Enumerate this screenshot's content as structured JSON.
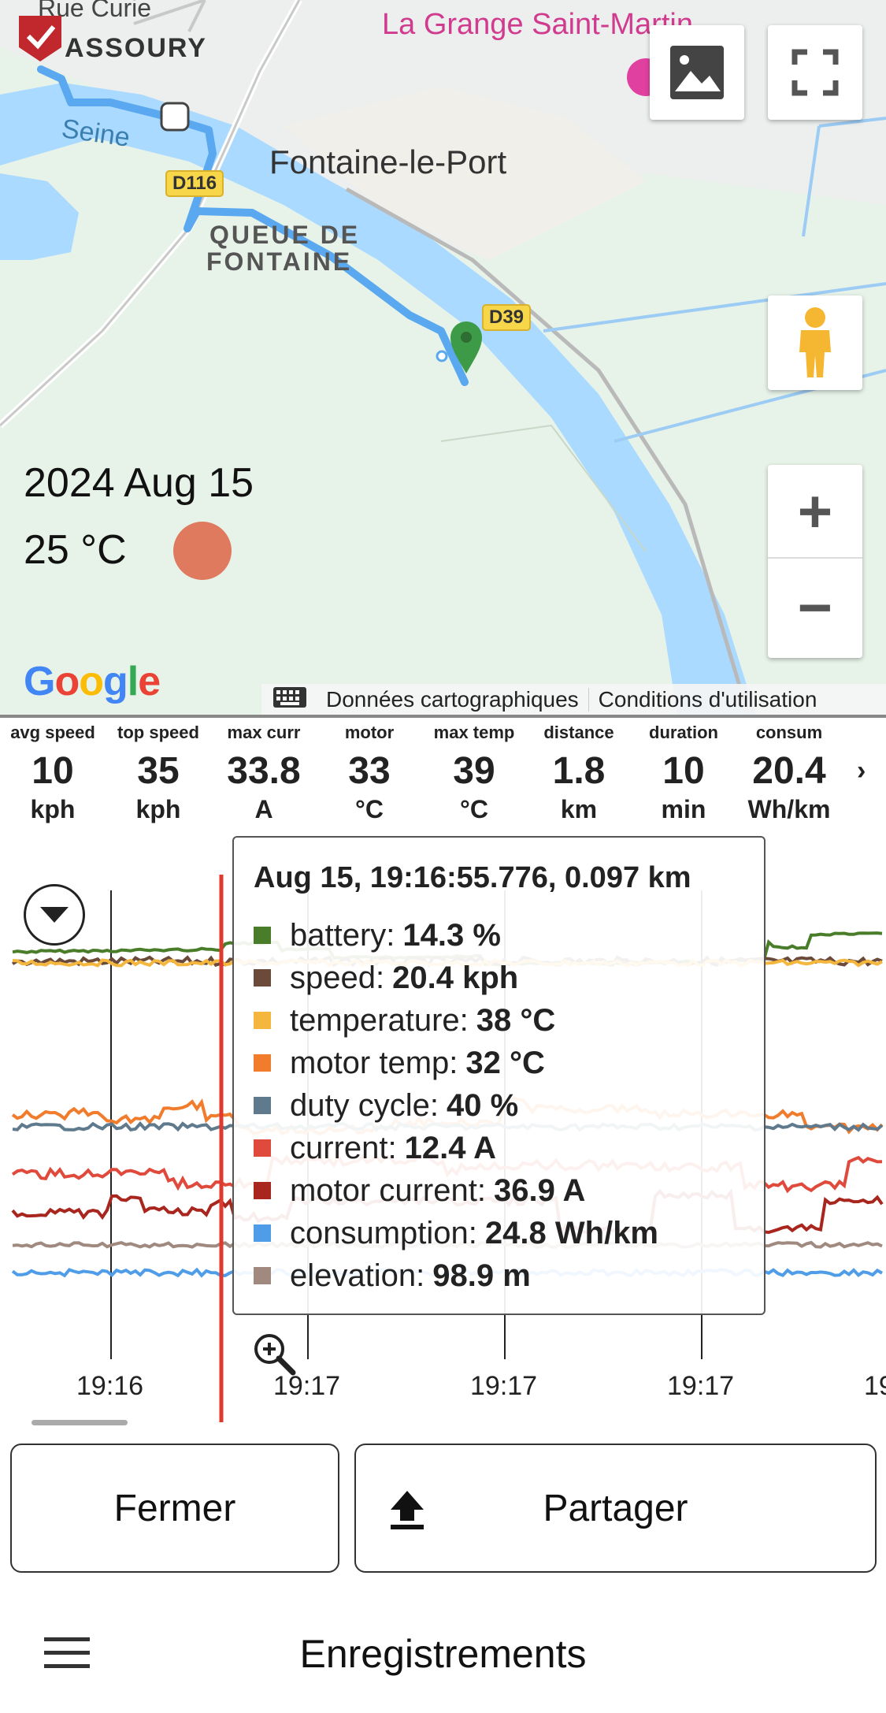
{
  "map": {
    "place_labels": {
      "rue": "Rue Curie",
      "assoury": "ASSOURY",
      "grange": "La Grange Saint-Martin",
      "seine": "Seine",
      "fontaine": "Fontaine-le-Port",
      "queue_line1": "QUEUE DE",
      "queue_line2": "FONTAINE"
    },
    "road_badges": {
      "d116": "D116",
      "d39": "D39"
    },
    "date": "2024 Aug 15",
    "temperature": "25 °C",
    "google_logo": "Google",
    "attribution": {
      "map_data": "Données cartographiques",
      "terms": "Conditions d'utilisation"
    },
    "buttons": {
      "layers_icon": "image-icon",
      "fullscreen_icon": "fullscreen-icon",
      "pegman_icon": "pegman-icon",
      "zoom_in": "+",
      "zoom_out": "−"
    },
    "colors": {
      "route": "#5aa9f0",
      "river": "#aadaff",
      "marker": "#3d9b47",
      "temp_dot": "#e07a5f"
    }
  },
  "stats": [
    {
      "label": "avg speed",
      "value": "10",
      "unit": "kph"
    },
    {
      "label": "top speed",
      "value": "35",
      "unit": "kph"
    },
    {
      "label": "max curr",
      "value": "33.8",
      "unit": "A"
    },
    {
      "label": "motor",
      "value": "33",
      "unit": "°C"
    },
    {
      "label": "max temp",
      "value": "39",
      "unit": "°C"
    },
    {
      "label": "distance",
      "value": "1.8",
      "unit": "km"
    },
    {
      "label": "duration",
      "value": "10",
      "unit": "min"
    },
    {
      "label": "consum",
      "value": "20.4",
      "unit": "Wh/km"
    }
  ],
  "stats_more": "›",
  "tooltip": {
    "title": "Aug 15, 19:16:55.776, 0.097 km",
    "rows": [
      {
        "label": "battery:",
        "value": "14.3 %",
        "color": "#4a7d2a"
      },
      {
        "label": "speed:",
        "value": "20.4 kph",
        "color": "#6b4a3a"
      },
      {
        "label": "temperature:",
        "value": "38 °C",
        "color": "#f4b63c"
      },
      {
        "label": "motor temp:",
        "value": "32 °C",
        "color": "#f07c2c"
      },
      {
        "label": "duty cycle:",
        "value": "40 %",
        "color": "#5f7a8c"
      },
      {
        "label": "current:",
        "value": "12.4 A",
        "color": "#e04a3c"
      },
      {
        "label": "motor current:",
        "value": "36.9 A",
        "color": "#a8261e"
      },
      {
        "label": "consumption:",
        "value": "24.8 Wh/km",
        "color": "#4f9de8"
      },
      {
        "label": "elevation:",
        "value": "98.9 m",
        "color": "#a08a80"
      }
    ]
  },
  "time_ticks": [
    "19:16",
    "19:17",
    "19:17",
    "19:17",
    "19"
  ],
  "actions": {
    "close": "Fermer",
    "share": "Partager"
  },
  "footer": {
    "title": "Enregistrements",
    "menu_icon": "hamburger-menu-icon"
  }
}
